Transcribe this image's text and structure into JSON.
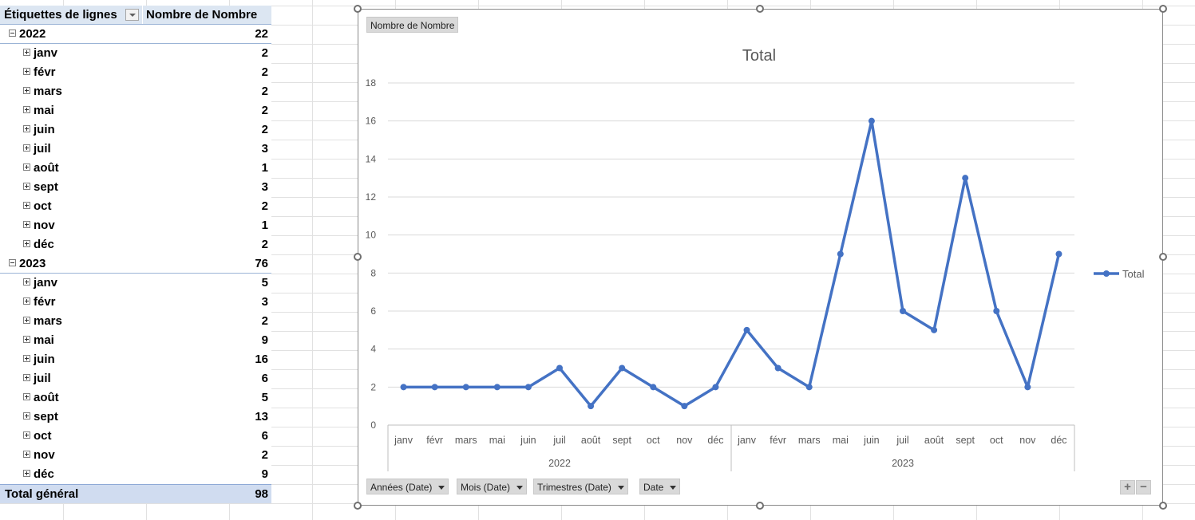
{
  "pivot": {
    "header_label": "Étiquettes de lignes",
    "header_value": "Nombre de Nombre",
    "rows": [
      {
        "type": "year",
        "label": "2022",
        "value": "22"
      },
      {
        "type": "month",
        "label": "janv",
        "value": "2"
      },
      {
        "type": "month",
        "label": "févr",
        "value": "2"
      },
      {
        "type": "month",
        "label": "mars",
        "value": "2"
      },
      {
        "type": "month",
        "label": "mai",
        "value": "2"
      },
      {
        "type": "month",
        "label": "juin",
        "value": "2"
      },
      {
        "type": "month",
        "label": "juil",
        "value": "3"
      },
      {
        "type": "month",
        "label": "août",
        "value": "1"
      },
      {
        "type": "month",
        "label": "sept",
        "value": "3"
      },
      {
        "type": "month",
        "label": "oct",
        "value": "2"
      },
      {
        "type": "month",
        "label": "nov",
        "value": "1"
      },
      {
        "type": "month",
        "label": "déc",
        "value": "2"
      },
      {
        "type": "year",
        "label": "2023",
        "value": "76"
      },
      {
        "type": "month",
        "label": "janv",
        "value": "5"
      },
      {
        "type": "month",
        "label": "févr",
        "value": "3"
      },
      {
        "type": "month",
        "label": "mars",
        "value": "2"
      },
      {
        "type": "month",
        "label": "mai",
        "value": "9"
      },
      {
        "type": "month",
        "label": "juin",
        "value": "16"
      },
      {
        "type": "month",
        "label": "juil",
        "value": "6"
      },
      {
        "type": "month",
        "label": "août",
        "value": "5"
      },
      {
        "type": "month",
        "label": "sept",
        "value": "13"
      },
      {
        "type": "month",
        "label": "oct",
        "value": "6"
      },
      {
        "type": "month",
        "label": "nov",
        "value": "2"
      },
      {
        "type": "month",
        "label": "déc",
        "value": "9"
      }
    ],
    "total_label": "Total général",
    "total_value": "98"
  },
  "chart_ui": {
    "value_field_button": "Nombre  de Nombre",
    "axis_field_buttons": [
      "Années (Date)",
      "Mois (Date)",
      "Trimestres (Date)",
      "Date"
    ],
    "zoom_plus": "+",
    "zoom_minus": "−"
  },
  "chart_data": {
    "type": "line",
    "title": "Total",
    "xlabel": "",
    "ylabel": "",
    "ylim": [
      0,
      18
    ],
    "yticks": [
      0,
      2,
      4,
      6,
      8,
      10,
      12,
      14,
      16,
      18
    ],
    "groups": [
      {
        "label": "2022",
        "categories": [
          "janv",
          "févr",
          "mars",
          "mai",
          "juin",
          "juil",
          "août",
          "sept",
          "oct",
          "nov",
          "déc"
        ]
      },
      {
        "label": "2023",
        "categories": [
          "janv",
          "févr",
          "mars",
          "mai",
          "juin",
          "juil",
          "août",
          "sept",
          "oct",
          "nov",
          "déc"
        ]
      }
    ],
    "series": [
      {
        "name": "Total",
        "color": "#4472c4",
        "values": [
          2,
          2,
          2,
          2,
          2,
          3,
          1,
          3,
          2,
          1,
          2,
          5,
          3,
          2,
          9,
          16,
          6,
          5,
          13,
          6,
          2,
          9
        ]
      }
    ],
    "grid": true,
    "legend": "right"
  }
}
